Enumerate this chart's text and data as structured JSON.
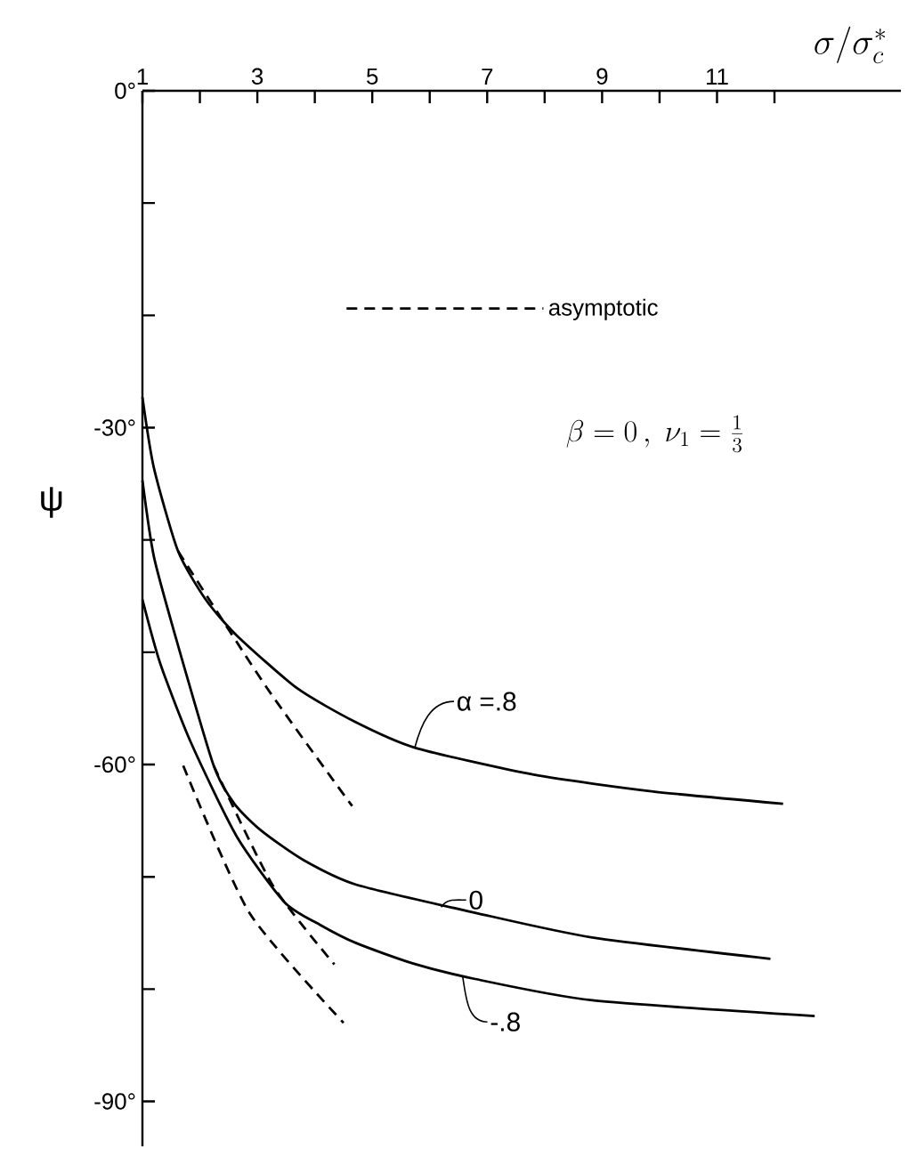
{
  "chart_data": {
    "type": "line",
    "xlabel": "\\sigma/\\sigma_c^{*}",
    "ylabel": "ψ",
    "xlim": [
      1,
      14.2
    ],
    "ylim": [
      -94,
      0
    ],
    "xticks": [
      1,
      {
        "value": 2,
        "label": null
      },
      3,
      {
        "value": 4,
        "label": null
      },
      5,
      {
        "value": 6,
        "label": null
      },
      7,
      {
        "value": 8,
        "label": null
      },
      9,
      {
        "value": 10,
        "label": null
      },
      11,
      {
        "value": 12,
        "label": null
      }
    ],
    "yticks": [
      {
        "value": 0,
        "label": "0°"
      },
      {
        "value": -10,
        "label": null
      },
      {
        "value": -20,
        "label": null
      },
      {
        "value": -30,
        "label": "-30°"
      },
      {
        "value": -40,
        "label": null
      },
      {
        "value": -50,
        "label": null
      },
      {
        "value": -60,
        "label": "-60°"
      },
      {
        "value": -70,
        "label": null
      },
      {
        "value": -80,
        "label": null
      },
      {
        "value": -90,
        "label": "-90°"
      }
    ],
    "marker": "none",
    "legend": "top right",
    "series": [
      {
        "color": "#000000",
        "line_style": "solid",
        "x": [
          1,
          1.2,
          1.62,
          2.1,
          2.64,
          3.69,
          4.7,
          5.74,
          7.81,
          9.89,
          12.15
        ],
        "values": [
          -27.3,
          -33.6,
          -41.0,
          -45.3,
          -48.5,
          -53.2,
          -56.2,
          -58.5,
          -60.9,
          -62.4,
          -63.5
        ]
      },
      {
        "color": "#000000",
        "line_style": "solid",
        "x": [
          1,
          1.2,
          1.62,
          2.24,
          2.6,
          3.07,
          3.8,
          4.72,
          6.79,
          8.83,
          11.93
        ],
        "values": [
          -34.7,
          -41.5,
          -49.4,
          -60.1,
          -63.5,
          -65.9,
          -68.5,
          -70.7,
          -73.2,
          -75.4,
          -77.3
        ]
      },
      {
        "color": "#000000",
        "line_style": "solid",
        "x": [
          1,
          1.31,
          1.84,
          2.64,
          3.48,
          4.1,
          4.72,
          5.7,
          6.79,
          8.83,
          12.7
        ],
        "values": [
          -45.3,
          -51.0,
          -58.0,
          -66.4,
          -72.3,
          -74.3,
          -75.9,
          -77.7,
          -79.1,
          -81.0,
          -82.4
        ]
      },
      {
        "name": "asymptotic",
        "color": "#000000",
        "line_style": "dashed",
        "x": [
          1.62,
          3.17,
          4.65
        ],
        "values": [
          -41.0,
          -53.2,
          -63.7
        ]
      },
      {
        "color": "#000000",
        "line_style": "dashed",
        "x": [
          2.24,
          3.26,
          4.34
        ],
        "values": [
          -60.1,
          -70.7,
          -77.8
        ]
      },
      {
        "color": "#000000",
        "line_style": "dashed",
        "x": [
          1.71,
          2.86,
          4.5
        ],
        "values": [
          -60.1,
          -73.2,
          -83.0
        ]
      }
    ],
    "annotations": [
      "\\beta=0\\,,\\ \\nu_1=\\frac{1}{3}",
      {
        "text": "α =.8",
        "x": 5.74,
        "y": -58.5
      },
      {
        "text": "0",
        "x": 6.2,
        "y": -72.7
      },
      {
        "text": "-.8",
        "x": 6.57,
        "y": -78.8
      }
    ]
  }
}
